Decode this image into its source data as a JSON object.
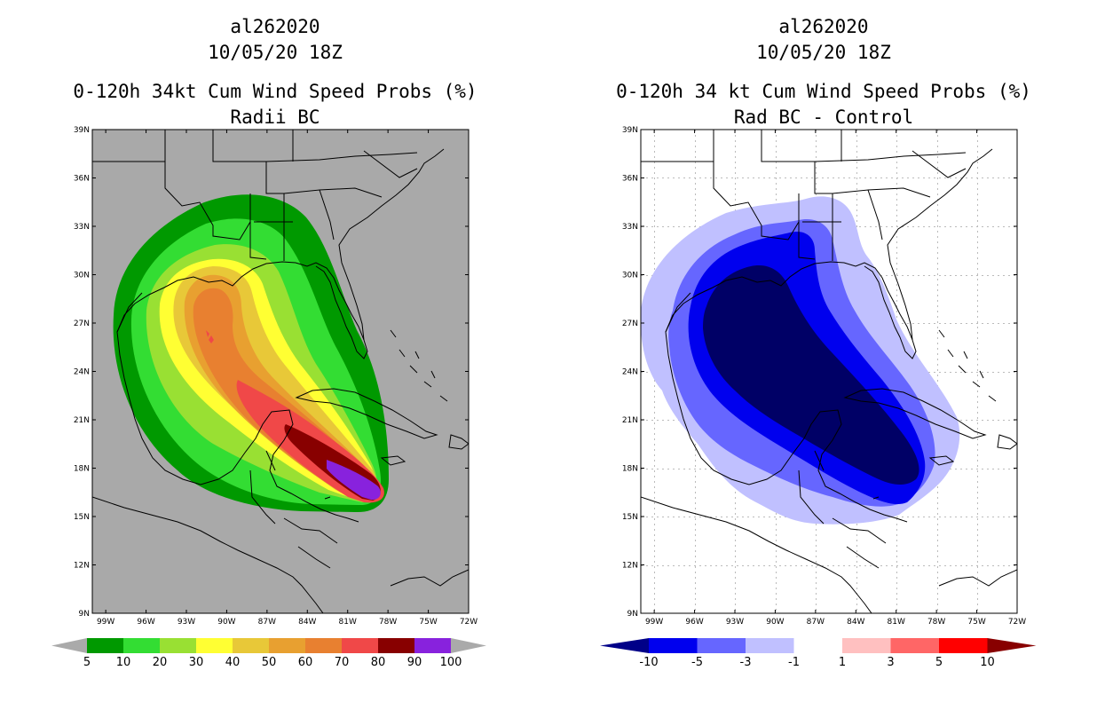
{
  "left_panel": {
    "storm_id": "al262020",
    "datetime": "10/05/20 18Z",
    "product": "0-120h 34kt Cum Wind Speed Probs (%)",
    "subtitle": "Radii BC",
    "background_color": "#a9a9a9",
    "colorbar": {
      "colors": [
        "#009900",
        "#33dd33",
        "#99e033",
        "#ffff33",
        "#e8c838",
        "#e8a030",
        "#e88030",
        "#f04848",
        "#880000",
        "#8822dd"
      ],
      "end_color": "#aaaaaa",
      "labels": [
        "5",
        "10",
        "20",
        "30",
        "40",
        "50",
        "60",
        "70",
        "80",
        "90",
        "100"
      ]
    },
    "field_layers": [
      {
        "level": "5",
        "color": "#009900"
      },
      {
        "level": "10",
        "color": "#33dd33"
      },
      {
        "level": "20",
        "color": "#99e033"
      },
      {
        "level": "30",
        "color": "#ffff33"
      },
      {
        "level": "40",
        "color": "#e8c838"
      },
      {
        "level": "50",
        "color": "#e8a030"
      },
      {
        "level": "60",
        "color": "#e88030"
      },
      {
        "level": "70",
        "color": "#f04848"
      },
      {
        "level": "80",
        "color": "#880000"
      },
      {
        "level": "90",
        "color": "#8822dd"
      }
    ]
  },
  "right_panel": {
    "storm_id": "al262020",
    "datetime": "10/05/20 18Z",
    "product": "0-120h 34 kt Cum Wind Speed Probs (%)",
    "subtitle": "Rad BC - Control",
    "background_color": "#ffffff",
    "colorbar": {
      "colors": [
        "#0000ee",
        "#6666ff",
        "#c0c0ff",
        "#ffffff",
        "#ffc0c0",
        "#ff6666",
        "#ff0000"
      ],
      "low_end_color": "#000088",
      "high_end_color": "#880000",
      "labels": [
        "-10",
        "-5",
        "-3",
        "-1",
        "1",
        "3",
        "5",
        "10"
      ]
    },
    "field_layers": [
      {
        "level": "-1",
        "color": "#c0c0ff"
      },
      {
        "level": "-3",
        "color": "#6666ff"
      },
      {
        "level": "-5",
        "color": "#0000ee"
      },
      {
        "level": "-10",
        "color": "#000066"
      }
    ]
  },
  "axes": {
    "lat_labels": [
      "39N",
      "36N",
      "33N",
      "30N",
      "27N",
      "24N",
      "21N",
      "18N",
      "15N",
      "12N",
      "9N"
    ],
    "lon_labels": [
      "99W",
      "96W",
      "93W",
      "90W",
      "87W",
      "84W",
      "81W",
      "78W",
      "75W",
      "72W"
    ],
    "lat_range": [
      9,
      39
    ],
    "lon_range": [
      -100,
      -72
    ]
  }
}
